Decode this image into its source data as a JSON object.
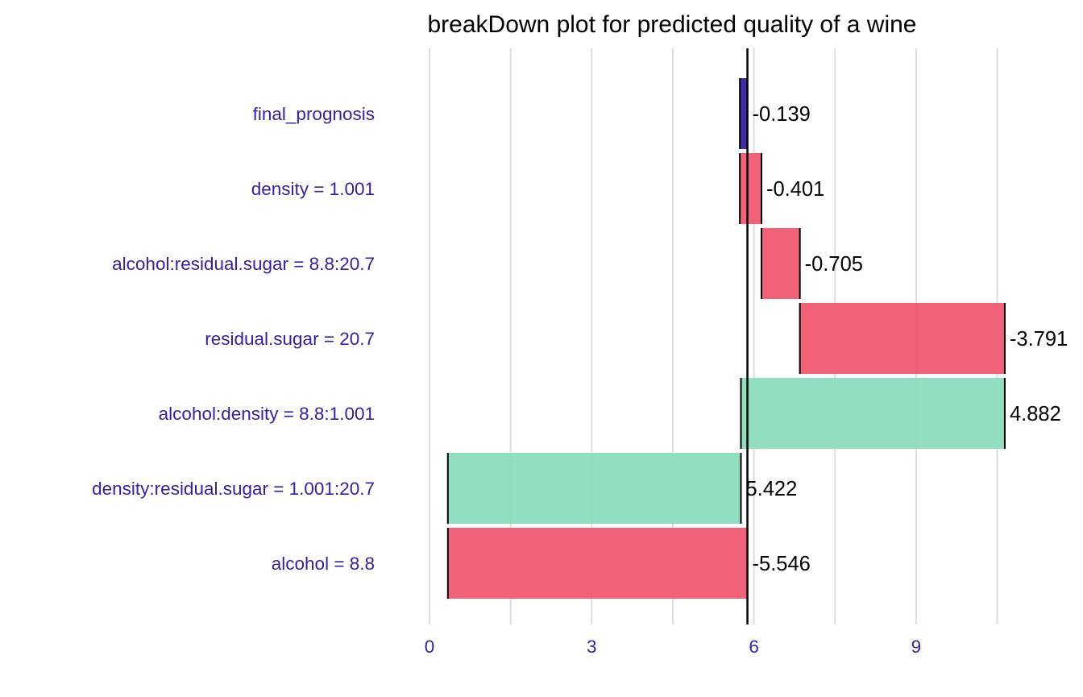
{
  "chart_data": {
    "type": "bar",
    "subtype": "waterfall-breakdown",
    "title": "breakDown plot for predicted quality of a wine",
    "xlabel": "",
    "ylabel": "",
    "xlim": [
      0,
      11.8
    ],
    "xticks": [
      0,
      3,
      6,
      9
    ],
    "grid": true,
    "legend": "none",
    "baseline": 5.88,
    "categories": [
      "final_prognosis",
      "density = 1.001",
      "alcohol:residual.sugar = 8.8:20.7",
      "residual.sugar = 20.7",
      "alcohol:density = 8.8:1.001",
      "density:residual.sugar = 1.001:20.7",
      "alcohol = 8.8"
    ],
    "bars": [
      {
        "start": 5.88,
        "end": 5.74,
        "label": "-0.139",
        "color": "#371ea3"
      },
      {
        "start": 5.74,
        "end": 6.14,
        "label": "-0.401",
        "color": "#f05a71"
      },
      {
        "start": 6.14,
        "end": 6.85,
        "label": "-0.705",
        "color": "#f05a71"
      },
      {
        "start": 6.85,
        "end": 10.64,
        "label": "-3.791",
        "color": "#f05a71"
      },
      {
        "start": 10.64,
        "end": 5.76,
        "label": "4.882",
        "color": "#8bdcbe"
      },
      {
        "start": 5.76,
        "end": 0.34,
        "label": "5.422",
        "color": "#8bdcbe"
      },
      {
        "start": 0.34,
        "end": 5.88,
        "label": "-5.546",
        "color": "#f05a71"
      }
    ]
  },
  "colors": {
    "label_text": "#371ea3",
    "grid": "#dddddd",
    "baseline": "#000000"
  }
}
